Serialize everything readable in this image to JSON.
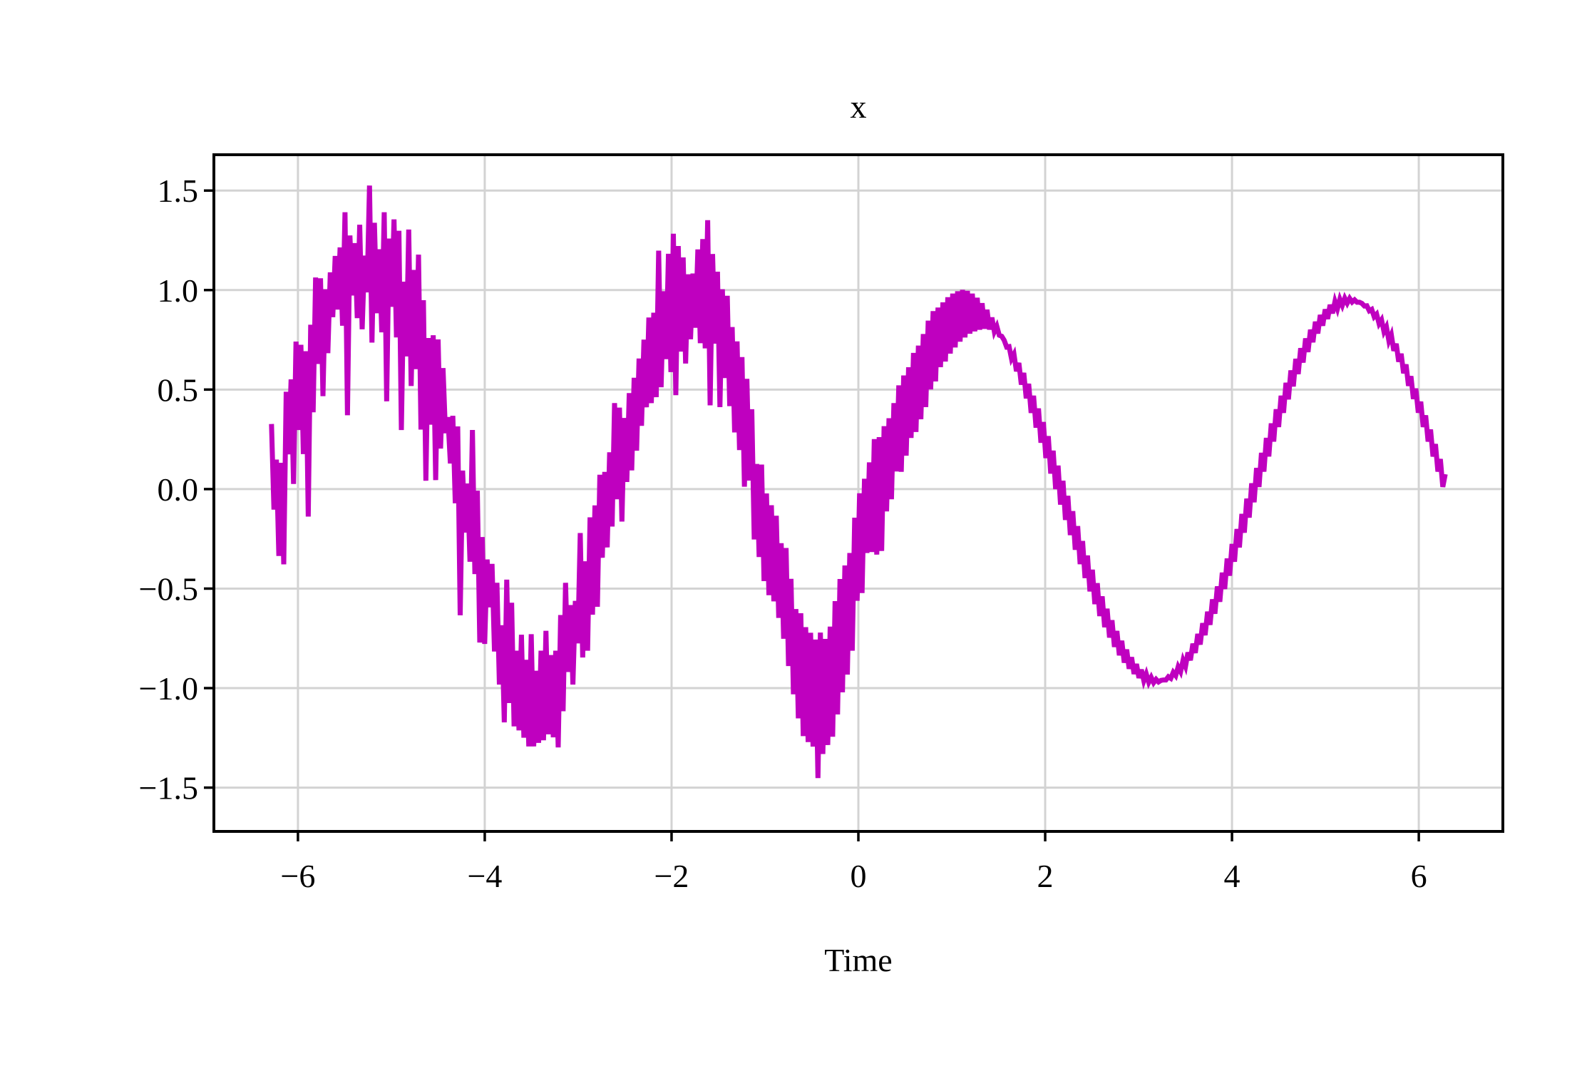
{
  "chart_data": {
    "type": "line",
    "title": "x",
    "xlabel": "Time",
    "ylabel": "",
    "xlim": [
      -6.9,
      6.9
    ],
    "ylim": [
      -1.72,
      1.68
    ],
    "grid": true,
    "legend": "none",
    "xticks": [
      -6,
      -4,
      -2,
      0,
      2,
      4,
      6
    ],
    "xtick_labels": [
      "−6",
      "−4",
      "−2",
      "0",
      "2",
      "4",
      "6"
    ],
    "yticks": [
      -1.5,
      -1.0,
      -0.5,
      0.0,
      0.5,
      1.0,
      1.5
    ],
    "ytick_labels": [
      "−1.5",
      "−1.0",
      "−0.5",
      "0.0",
      "0.5",
      "1.0",
      "1.5"
    ],
    "colors": {
      "line": "#bf00bf",
      "grid": "#d3d3d3",
      "axes": "#000000"
    },
    "series": [
      {
        "x_range": [
          -6.2832,
          6.2832
        ],
        "n_points": 500,
        "model": "sin(x) with additive noise",
        "values": [
          0.327,
          -0.103,
          0.148,
          -0.336,
          0.132,
          -0.378,
          0.489,
          0.175,
          0.551,
          0.026,
          0.741,
          0.297,
          0.725,
          0.176,
          0.693,
          -0.138,
          0.826,
          0.386,
          1.063,
          0.629,
          1.059,
          0.467,
          1.004,
          0.683,
          1.089,
          0.864,
          1.171,
          0.902,
          1.214,
          0.821,
          1.391,
          0.371,
          1.274,
          0.973,
          1.236,
          0.859,
          1.328,
          0.803,
          1.173,
          0.989,
          1.525,
          0.736,
          1.338,
          0.884,
          1.205,
          0.788,
          1.391,
          0.441,
          1.259,
          0.916,
          1.355,
          0.762,
          1.298,
          0.297,
          1.042,
          0.667,
          1.304,
          0.518,
          1.101,
          0.603,
          1.178,
          0.299,
          0.949,
          0.042,
          0.759,
          0.324,
          0.773,
          0.045,
          0.752,
          0.204,
          0.608,
          0.281,
          0.362,
          0.129,
          0.368,
          -0.071,
          0.315,
          -0.634,
          0.093,
          -0.218,
          0.028,
          -0.365,
          0.297,
          -0.427,
          -0.008,
          -0.771,
          -0.241,
          -0.778,
          -0.354,
          -0.594,
          -0.376,
          -0.816,
          -0.471,
          -0.982,
          -0.684,
          -1.172,
          -0.455,
          -1.075,
          -0.571,
          -1.192,
          -0.812,
          -1.212,
          -0.732,
          -1.249,
          -0.858,
          -1.293,
          -0.729,
          -1.293,
          -0.913,
          -1.275,
          -0.812,
          -1.262,
          -0.712,
          -1.232,
          -0.834,
          -1.247,
          -0.812,
          -1.298,
          -0.633,
          -1.116,
          -0.471,
          -0.919,
          -0.583,
          -0.982,
          -0.562,
          -0.775,
          -0.221,
          -0.846,
          -0.363,
          -0.812,
          -0.142,
          -0.631,
          -0.082,
          -0.591,
          0.072,
          -0.345,
          0.086,
          -0.293,
          0.185,
          -0.188,
          0.432,
          -0.051,
          0.409,
          -0.163,
          0.357,
          0.036,
          0.482,
          0.094,
          0.559,
          0.193,
          0.656,
          0.318,
          0.751,
          0.411,
          0.862,
          0.432,
          0.886,
          0.462,
          1.198,
          0.512,
          0.994,
          0.653,
          1.182,
          0.588,
          1.283,
          0.472,
          1.221,
          0.691,
          1.164,
          0.631,
          1.079,
          0.753,
          1.083,
          0.811,
          1.204,
          0.733,
          1.256,
          0.707,
          1.351,
          0.421,
          1.181,
          0.731,
          1.092,
          0.412,
          1.004,
          0.558,
          0.971,
          0.417,
          0.814,
          0.285,
          0.742,
          0.196,
          0.663,
          0.012,
          0.554,
          0.043,
          0.401,
          -0.253,
          0.126,
          -0.341,
          0.123,
          -0.462,
          -0.022,
          -0.533,
          -0.081,
          -0.564,
          -0.134,
          -0.647,
          -0.272,
          -0.752,
          -0.296,
          -0.889,
          -0.451,
          -1.031,
          -0.603,
          -1.152,
          -0.624,
          -1.241,
          -0.694,
          -1.271,
          -0.722,
          -1.294,
          -0.756,
          -1.452,
          -0.721,
          -1.331,
          -0.753,
          -1.286,
          -0.691,
          -1.244,
          -0.563,
          -1.132,
          -0.452,
          -1.021,
          -0.384,
          -0.932,
          -0.321,
          -0.812,
          -0.144,
          -0.561,
          -0.021,
          -0.522,
          0.052,
          -0.321,
          0.134,
          -0.316,
          0.251,
          -0.329,
          0.261,
          -0.311,
          0.316,
          -0.112,
          0.356,
          -0.051,
          0.432,
          0.089,
          0.521,
          0.087,
          0.571,
          0.168,
          0.612,
          0.257,
          0.684,
          0.287,
          0.721,
          0.351,
          0.779,
          0.412,
          0.846,
          0.501,
          0.894,
          0.541,
          0.912,
          0.613,
          0.938,
          0.641,
          0.964,
          0.681,
          0.982,
          0.712,
          0.994,
          0.741,
          1.001,
          0.762,
          0.996,
          0.781,
          0.982,
          0.793,
          0.961,
          0.801,
          0.934,
          0.806,
          0.901,
          0.802,
          0.862,
          0.791,
          0.818,
          0.773,
          0.768,
          0.748,
          0.714,
          0.716,
          0.655,
          0.678,
          0.592,
          0.634,
          0.525,
          0.584,
          0.456,
          0.529,
          0.383,
          0.469,
          0.309,
          0.405,
          0.233,
          0.337,
          0.156,
          0.266,
          0.078,
          0.193,
          0.0,
          0.118,
          -0.078,
          0.042,
          -0.155,
          -0.034,
          -0.231,
          -0.111,
          -0.305,
          -0.186,
          -0.377,
          -0.261,
          -0.447,
          -0.334,
          -0.514,
          -0.405,
          -0.578,
          -0.473,
          -0.638,
          -0.539,
          -0.694,
          -0.601,
          -0.746,
          -0.659,
          -0.793,
          -0.713,
          -0.835,
          -0.762,
          -0.872,
          -0.806,
          -0.903,
          -0.845,
          -0.929,
          -0.879,
          -0.949,
          -0.907,
          -0.963,
          -0.929,
          -0.971,
          -0.946,
          -0.973,
          -0.956,
          -0.969,
          -0.961,
          -0.959,
          -0.959,
          -0.943,
          -0.951,
          -0.921,
          -0.937,
          -0.893,
          -0.917,
          -0.86,
          -0.891,
          -0.821,
          -0.86,
          -0.777,
          -0.823,
          -0.728,
          -0.781,
          -0.674,
          -0.734,
          -0.616,
          -0.682,
          -0.554,
          -0.626,
          -0.489,
          -0.566,
          -0.42,
          -0.502,
          -0.349,
          -0.435,
          -0.276,
          -0.365,
          -0.201,
          -0.293,
          -0.125,
          -0.219,
          -0.048,
          -0.143,
          0.029,
          -0.066,
          0.106,
          0.011,
          0.182,
          0.088,
          0.257,
          0.164,
          0.33,
          0.239,
          0.401,
          0.312,
          0.469,
          0.383,
          0.534,
          0.451,
          0.596,
          0.516,
          0.654,
          0.578,
          0.708,
          0.636,
          0.757,
          0.689,
          0.801,
          0.738,
          0.841,
          0.782,
          0.875,
          0.821,
          0.903,
          0.855,
          0.926,
          0.883,
          0.943,
          0.906,
          0.954,
          0.923,
          0.959,
          0.934,
          0.958,
          0.94,
          0.951,
          0.939,
          0.939,
          0.933,
          0.92,
          0.921,
          0.896,
          0.903,
          0.866,
          0.879,
          0.831,
          0.85,
          0.791,
          0.815,
          0.745,
          0.775,
          0.695,
          0.73,
          0.64,
          0.68,
          0.582,
          0.626,
          0.519,
          0.567,
          0.453,
          0.505,
          0.384,
          0.439,
          0.312,
          0.37,
          0.239,
          0.299,
          0.164,
          0.226,
          0.088,
          0.151,
          0.011,
          0.075
        ]
      }
    ]
  }
}
